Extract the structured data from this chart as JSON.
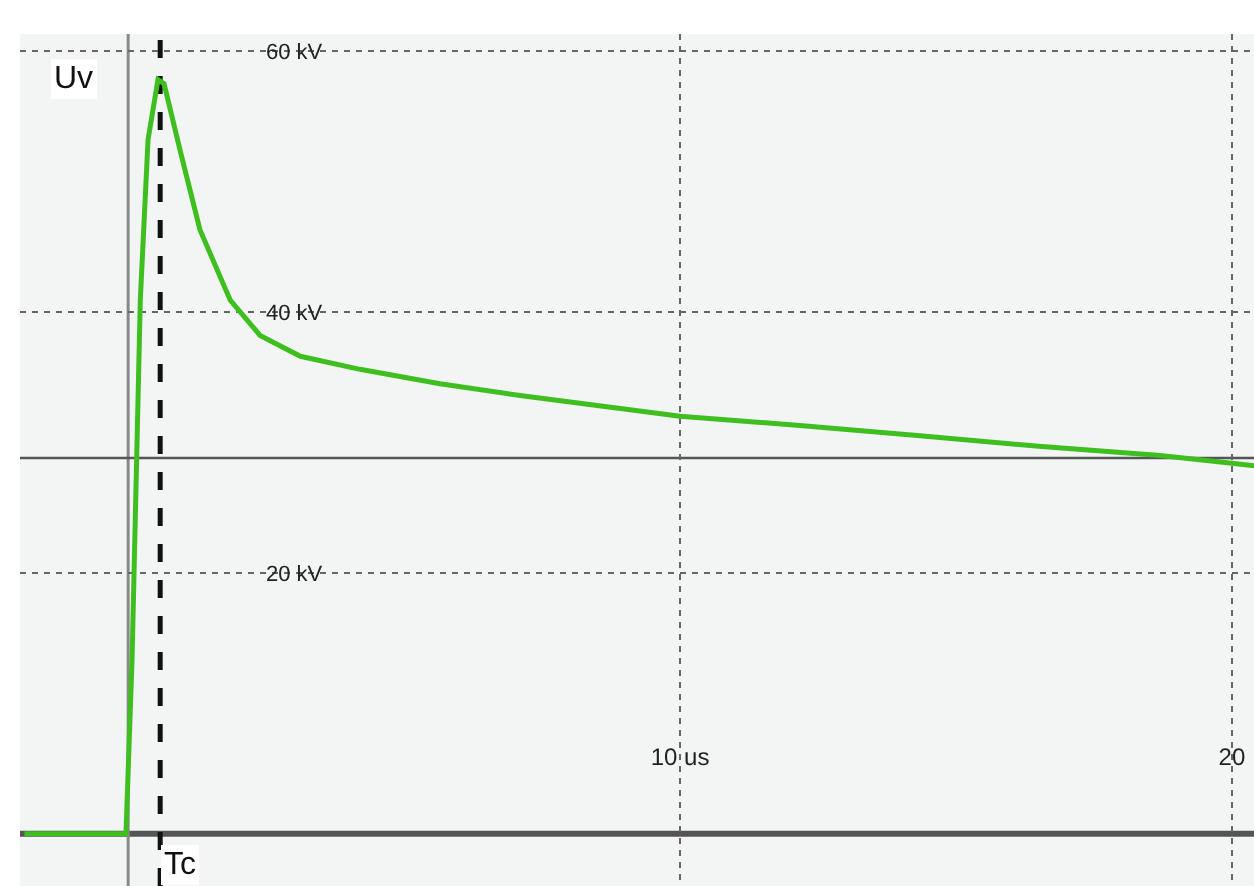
{
  "chart_data": {
    "type": "line",
    "x": [
      -1.88,
      -0.04,
      0.07,
      0.22,
      0.36,
      0.54,
      0.65,
      0.94,
      1.3,
      1.85,
      2.39,
      3.12,
      4.2,
      5.65,
      7.1,
      10.0,
      12.17,
      14.35,
      16.5,
      18.7,
      20.0,
      20.4
    ],
    "series": [
      {
        "color": "#3fbf1f",
        "values": [
          0,
          0,
          13.3,
          40.9,
          53.2,
          57.8,
          57.5,
          52.4,
          46.3,
          40.9,
          38.2,
          36.6,
          35.6,
          34.5,
          33.6,
          32.0,
          31.3,
          30.5,
          29.7,
          29.0,
          28.4,
          28.2
        ]
      }
    ],
    "xlim": [
      -1.96,
      20.4
    ],
    "ylim": [
      -4.0,
      61.3
    ],
    "xticks": [
      {
        "value": 10,
        "label": "10 us"
      },
      20
    ],
    "yticks": [
      {
        "value": 20,
        "label": "20 kV"
      },
      {
        "value": 40,
        "label": "40 kV"
      },
      {
        "value": 60,
        "label": "60 kV"
      }
    ],
    "grid": true,
    "ref_lines": [
      {
        "axis": "y",
        "value": 0,
        "label": null,
        "color": "#555555",
        "line_style": "solid"
      },
      {
        "axis": "x",
        "value": 0,
        "label": null,
        "color": "#888888",
        "line_style": "solid"
      },
      {
        "axis": "y",
        "value": 28.8,
        "label": null,
        "color": "#555555",
        "line_style": "solid"
      },
      {
        "axis": "x",
        "value": 0.58,
        "label": "Tc",
        "color": "#111111",
        "line_style": "dashed"
      }
    ],
    "annotations": [
      {
        "text": "Uv",
        "x": 0.54,
        "y": 57.8
      }
    ]
  }
}
